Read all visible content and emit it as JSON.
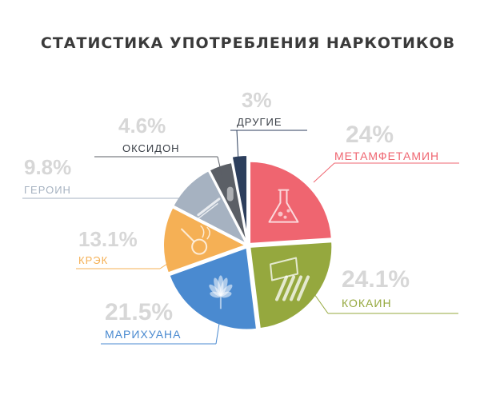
{
  "title": "СТАТИСТИКА УПОТРЕБЛЕНИЯ НАРКОТИКОВ",
  "chart_data": {
    "type": "pie",
    "title": "СТАТИСТИКА УПОТРЕБЛЕНИЯ НАРКОТИКОВ",
    "slices": [
      {
        "label": "МЕТАМФЕТАМИН",
        "value": 24,
        "value_label": "24%",
        "color": "#ef6570",
        "icon": "flask-icon"
      },
      {
        "label": "КОКАИН",
        "value": 24.1,
        "value_label": "24.1%",
        "color": "#95a83e",
        "icon": "lines-of-powder-icon"
      },
      {
        "label": "МАРИХУАНА",
        "value": 21.5,
        "value_label": "21.5%",
        "color": "#4a8ad0",
        "icon": "cannabis-leaf-icon"
      },
      {
        "label": "КРЭК",
        "value": 13.1,
        "value_label": "13.1%",
        "color": "#f5b055",
        "icon": "crack-pipe-icon"
      },
      {
        "label": "ГЕРОИН",
        "value": 9.8,
        "value_label": "9.8%",
        "color": "#a6b2c1",
        "icon": "syringe-icon"
      },
      {
        "label": "ОКСИДОН",
        "value": 4.6,
        "value_label": "4.6%",
        "color": "#5b5f66",
        "icon": "pill-icon"
      },
      {
        "label": "ДРУГИЕ",
        "value": 3,
        "value_label": "3%",
        "color": "#2c3e5c",
        "icon": ""
      }
    ],
    "percent_color": "#d7d7d7",
    "legend": "callouts around pie"
  }
}
